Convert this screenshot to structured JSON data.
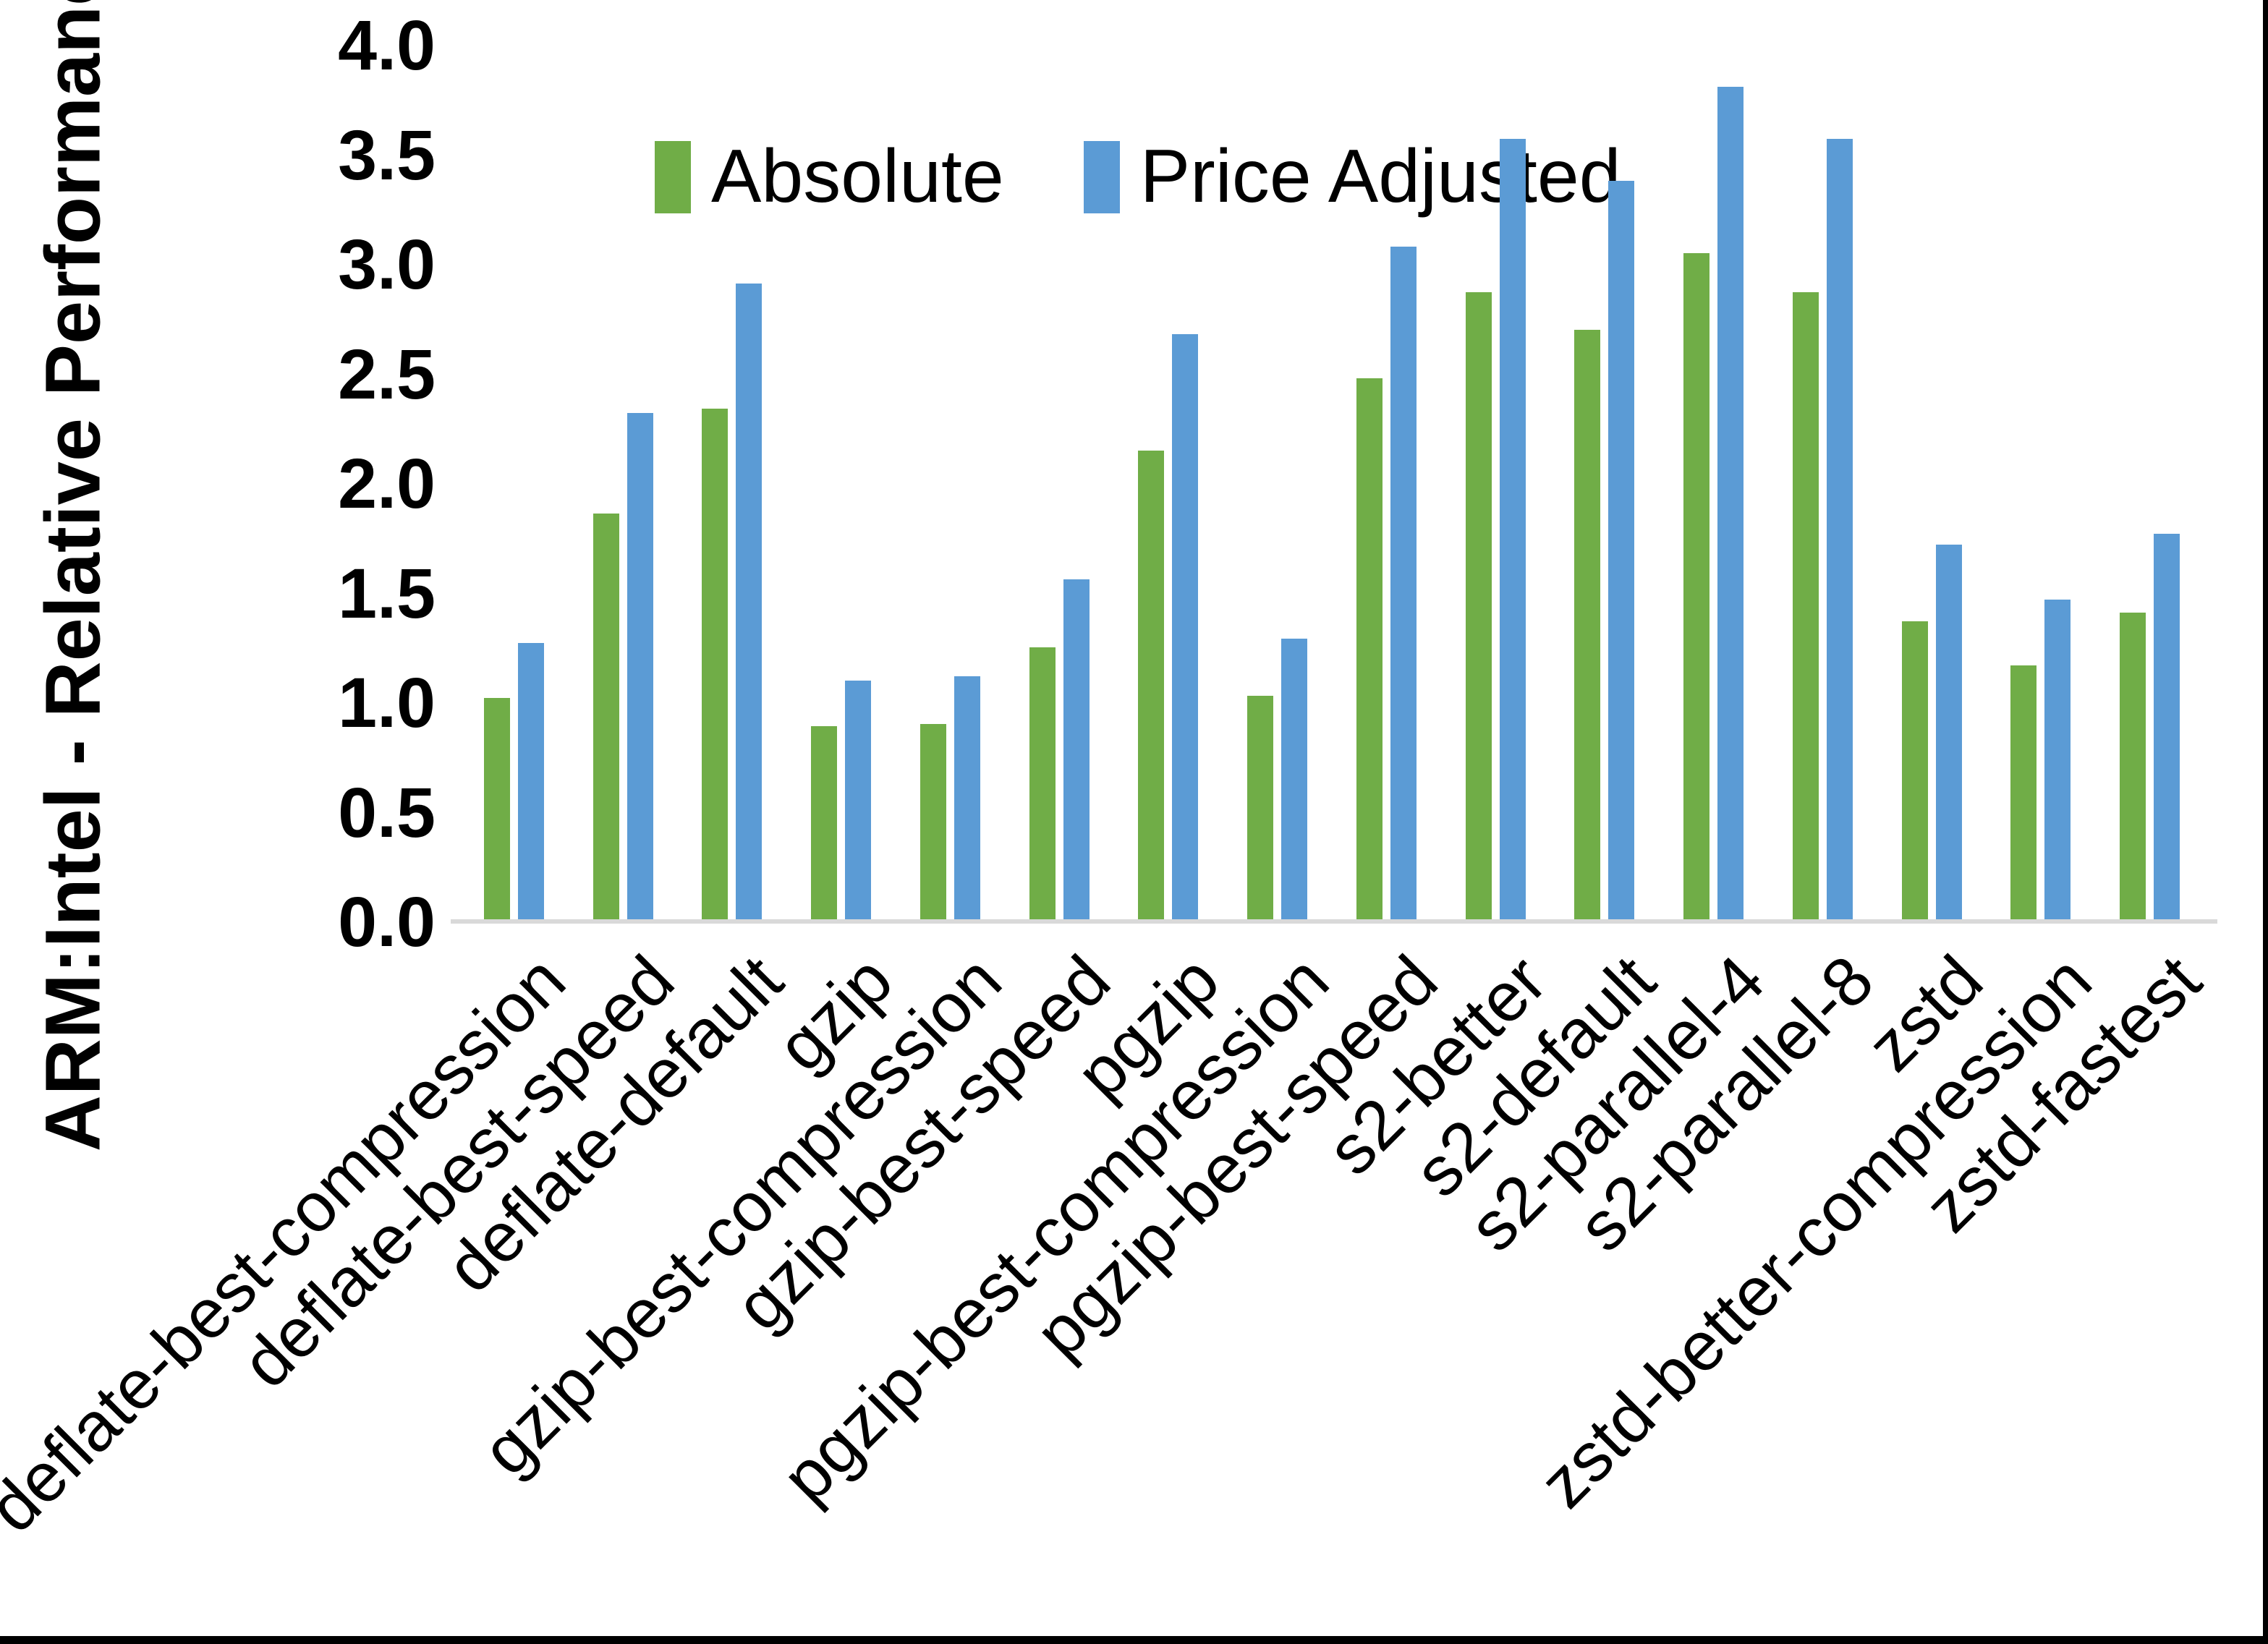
{
  "y_axis": {
    "title": "ARM:Intel - Relative Performance",
    "tick_labels": [
      "0.0",
      "0.5",
      "1.0",
      "1.5",
      "2.0",
      "2.5",
      "3.0",
      "3.5",
      "4.0"
    ]
  },
  "legend": {
    "items": [
      {
        "label": "Absolute",
        "color": "#70AD47"
      },
      {
        "label": "Price Adjusted",
        "color": "#5B9BD5"
      }
    ]
  },
  "chart_data": {
    "type": "bar",
    "title": "",
    "ylabel": "ARM:Intel - Relative Performance",
    "xlabel": "",
    "ylim": [
      0,
      4.0
    ],
    "ytick_step": 0.5,
    "grid": false,
    "legend_position": "top-center-inside",
    "categories": [
      "deflate-best-compression",
      "deflate-best-speed",
      "deflate-default",
      "gzip",
      "gzip-best-compression",
      "gzip-best-speed",
      "pgzip",
      "pgzip-best-compression",
      "pgzip-best-speed",
      "s2-better",
      "s2-default",
      "s2-parallel-4",
      "s2-parallel-8",
      "zstd",
      "zstd-better-compression",
      "zstd-fastest"
    ],
    "series": [
      {
        "name": "Absolute",
        "color": "#70AD47",
        "values": [
          1.02,
          1.86,
          2.34,
          0.89,
          0.9,
          1.25,
          2.15,
          1.03,
          2.48,
          2.87,
          2.7,
          3.05,
          2.87,
          1.37,
          1.17,
          1.41
        ]
      },
      {
        "name": "Price Adjusted",
        "color": "#5B9BD5",
        "values": [
          1.27,
          2.32,
          2.91,
          1.1,
          1.12,
          1.56,
          2.68,
          1.29,
          3.08,
          3.57,
          3.38,
          3.81,
          3.57,
          1.72,
          1.47,
          1.77
        ]
      }
    ]
  }
}
